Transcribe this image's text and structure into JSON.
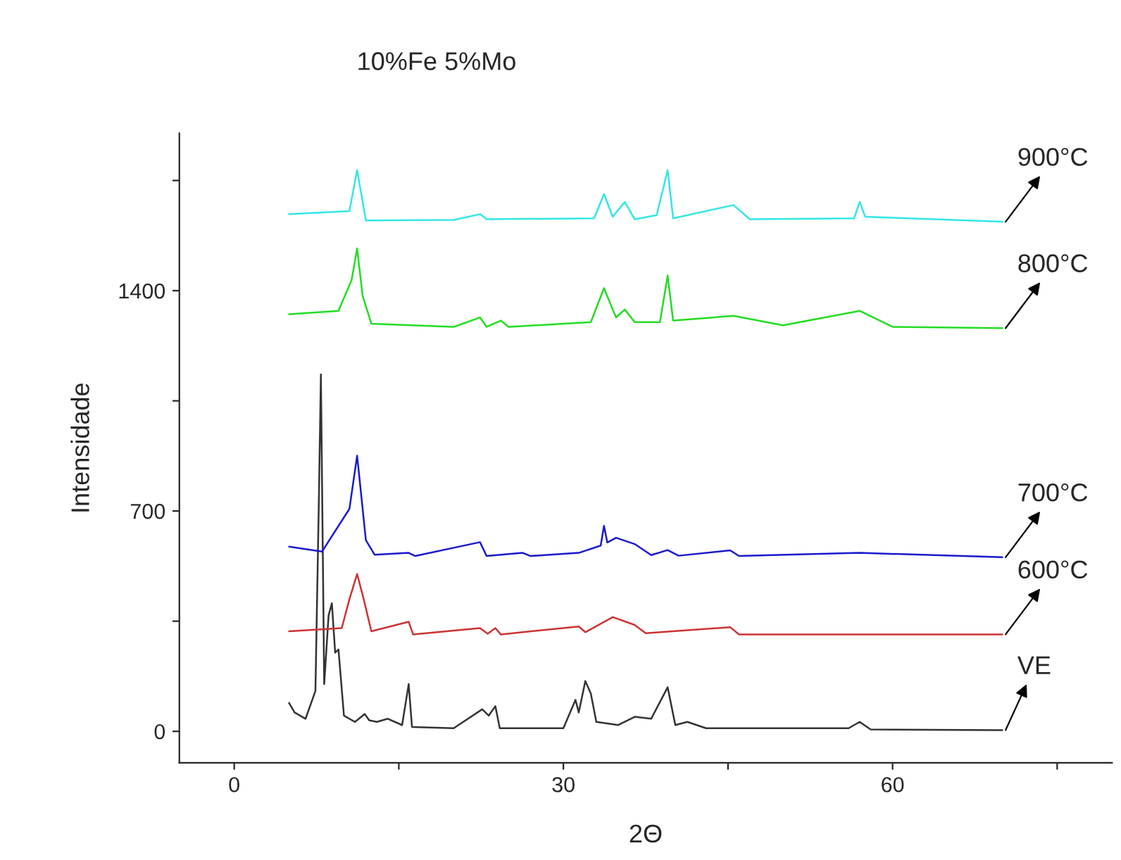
{
  "chart_data": {
    "type": "line",
    "title": "10%Fe 5%Mo",
    "xlabel": "2Θ",
    "ylabel": "Intensidade",
    "xlim": [
      -5,
      80
    ],
    "xticks": [
      0,
      {
        "value": 15,
        "label": null
      },
      30,
      {
        "value": 45,
        "label": null
      },
      60,
      {
        "value": 75,
        "label": null
      }
    ],
    "ylim": [
      -100,
      1900
    ],
    "yticks": [
      0,
      {
        "value": 350,
        "label": null
      },
      700,
      {
        "value": 1050,
        "label": null
      },
      1400,
      {
        "value": 1750,
        "label": null
      }
    ],
    "grid": false,
    "legend": false,
    "marker": "none",
    "line_style": "solid",
    "series": [
      {
        "name": "VE",
        "color": "#333333",
        "x": [
          5,
          5.5,
          6.5,
          7.4,
          7.7,
          7.9,
          8.2,
          8.6,
          8.9,
          9.2,
          9.5,
          10,
          11,
          11.9,
          12.3,
          13,
          14,
          15.3,
          15.9,
          16.2,
          20,
          22.6,
          23.2,
          23.8,
          24.2,
          30,
          31.1,
          31.4,
          32,
          32.5,
          33,
          35,
          36.5,
          38,
          39.5,
          40.2,
          41.3,
          43,
          56,
          57,
          58,
          70
        ],
        "values": [
          90,
          60,
          40,
          128,
          706,
          1134,
          150,
          368,
          407,
          250,
          260,
          50,
          30,
          55,
          35,
          30,
          40,
          20,
          150,
          14,
          10,
          70,
          50,
          80,
          10,
          10,
          100,
          60,
          160,
          120,
          30,
          20,
          46,
          40,
          140,
          20,
          30,
          10,
          10,
          30,
          6,
          4
        ]
      },
      {
        "name": "600°C",
        "color": "#cc3333",
        "x": [
          5,
          9.8,
          10.5,
          11.2,
          11.8,
          12.5,
          15.9,
          16.3,
          22.4,
          23.1,
          23.8,
          24.3,
          31.4,
          32,
          34.5,
          36.5,
          37.5,
          45.2,
          46,
          70
        ],
        "values": [
          318,
          328,
          420,
          500,
          420,
          318,
          348,
          308,
          328,
          310,
          328,
          308,
          333,
          315,
          363,
          338,
          312,
          331,
          308,
          308
        ]
      },
      {
        "name": "700°C",
        "color": "#1a1acc",
        "x": [
          5,
          8,
          10.5,
          11.2,
          12,
          12.8,
          15.9,
          16.5,
          22.4,
          23,
          26.3,
          27,
          31.4,
          33.4,
          33.7,
          34,
          34.8,
          36.5,
          38,
          39.5,
          40.5,
          45.2,
          46,
          57,
          70
        ],
        "values": [
          587,
          571,
          707,
          876,
          607,
          561,
          567,
          557,
          601,
          557,
          567,
          557,
          567,
          590,
          653,
          600,
          615,
          595,
          560,
          576,
          558,
          575,
          557,
          567,
          553
        ]
      },
      {
        "name": "800°C",
        "color": "#22dd22",
        "x": [
          5,
          9.5,
          10.7,
          11.2,
          11.7,
          12.5,
          20,
          22.4,
          23,
          24.3,
          25,
          32.5,
          33.7,
          34.8,
          35.6,
          36.5,
          38.8,
          39.5,
          40,
          45.5,
          50,
          57,
          60,
          70
        ],
        "values": [
          1325,
          1336,
          1434,
          1534,
          1384,
          1295,
          1285,
          1315,
          1285,
          1305,
          1285,
          1300,
          1408,
          1315,
          1340,
          1300,
          1300,
          1448,
          1305,
          1320,
          1290,
          1336,
          1285,
          1281
        ]
      },
      {
        "name": "900°C",
        "color": "#33e6e6",
        "x": [
          5,
          10.5,
          11.2,
          12,
          20,
          22.4,
          23,
          32.8,
          33.7,
          34.5,
          35.6,
          36.5,
          38.5,
          39.5,
          40,
          45.5,
          47,
          56.5,
          57,
          57.5,
          70
        ],
        "values": [
          1643,
          1653,
          1783,
          1623,
          1625,
          1643,
          1627,
          1630,
          1707,
          1635,
          1682,
          1627,
          1640,
          1783,
          1630,
          1672,
          1627,
          1630,
          1682,
          1635,
          1619
        ]
      }
    ]
  }
}
